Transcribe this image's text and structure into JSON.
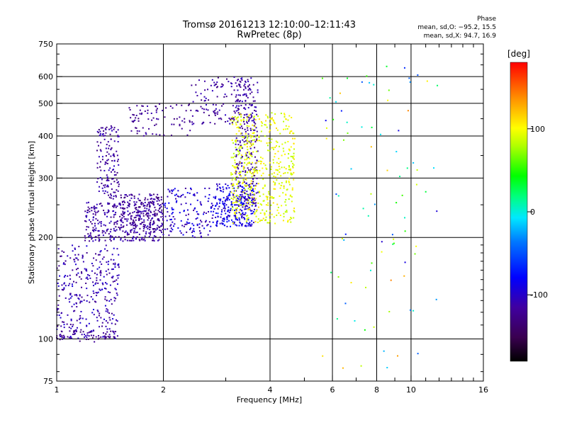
{
  "chart_data": {
    "type": "scatter",
    "title": "Tromsø 20161213 12:10:00–12:11:43",
    "subtitle": "RwPretec (8p)",
    "xlabel": "Frequency [MHz]",
    "ylabel": "Stationary phase Virtual Height [km]",
    "x_scale": "log",
    "y_scale": "log",
    "xlim": [
      1,
      16
    ],
    "ylim": [
      75,
      750
    ],
    "x_ticks": [
      1,
      2,
      4,
      6,
      8,
      10,
      16
    ],
    "x_tick_labels": [
      "1",
      "2",
      "4",
      "6",
      "8",
      "10",
      "16"
    ],
    "x_minor_ticks": [
      3,
      5,
      7,
      9,
      11,
      12,
      13,
      14,
      15
    ],
    "y_ticks": [
      75,
      100,
      200,
      300,
      400,
      500,
      600,
      750
    ],
    "y_tick_labels": [
      "75",
      "100",
      "200",
      "300",
      "400",
      "500",
      "600",
      "750"
    ],
    "grid": true,
    "colorbar": {
      "label": "[deg]",
      "range": [
        -180,
        180
      ],
      "ticks": [
        100,
        0,
        -100
      ],
      "tick_labels": [
        "100",
        "0",
        "-100"
      ]
    },
    "stats": {
      "heading": "Phase",
      "o_mode": "mean, sd,O: −95.2, 15.5",
      "x_mode": "mean, sd,X:  94.7, 16.9"
    },
    "traces": [
      {
        "id": "E-layer low",
        "x_range": [
          1.0,
          1.5
        ],
        "y_range": [
          100,
          190
        ],
        "phase": -110,
        "spread": 18,
        "n": 320
      },
      {
        "id": "E-region echoes",
        "x_range": [
          1.0,
          1.5
        ],
        "y_range": [
          98,
          106
        ],
        "phase": -120,
        "spread": 18,
        "n": 60
      },
      {
        "id": "F1 O-mode trace",
        "x_range": [
          1.2,
          2.0
        ],
        "y_range": [
          195,
          255
        ],
        "phase": -115,
        "spread": 15,
        "n": 360
      },
      {
        "id": "F1 cluster",
        "x_range": [
          1.5,
          2.0
        ],
        "y_range": [
          205,
          270
        ],
        "phase": -120,
        "spread": 15,
        "n": 150
      },
      {
        "id": "F1 patchy high",
        "x_range": [
          1.3,
          1.5
        ],
        "y_range": [
          260,
          430
        ],
        "phase": -115,
        "spread": 15,
        "n": 140
      },
      {
        "id": "F1 rising",
        "x_range": [
          2.0,
          2.8
        ],
        "y_range": [
          200,
          280
        ],
        "phase": -100,
        "spread": 20,
        "n": 150
      },
      {
        "id": "F2 O-mode cusp",
        "x_range": [
          2.8,
          3.6
        ],
        "y_range": [
          215,
          290
        ],
        "phase": -90,
        "spread": 20,
        "n": 250
      },
      {
        "id": "F2 O-mode steep",
        "x_range": [
          3.2,
          3.7
        ],
        "y_range": [
          240,
          600
        ],
        "phase": -115,
        "spread": 15,
        "n": 260
      },
      {
        "id": "F2 X-mode",
        "x_range": [
          3.1,
          4.7
        ],
        "y_range": [
          220,
          470
        ],
        "phase": 95,
        "spread": 17,
        "n": 520
      },
      {
        "id": "Oblique upper",
        "x_range": [
          2.4,
          3.6
        ],
        "y_range": [
          430,
          600
        ],
        "phase": -115,
        "spread": 15,
        "n": 120
      },
      {
        "id": "Oblique F1 upper",
        "x_range": [
          1.6,
          2.4
        ],
        "y_range": [
          400,
          500
        ],
        "phase": -120,
        "spread": 12,
        "n": 80
      },
      {
        "id": "Sparse high-frequency echoes",
        "x_range": [
          5.5,
          12.0
        ],
        "y_range": [
          80,
          650
        ],
        "phase": 20,
        "spread": 120,
        "n": 90
      }
    ]
  }
}
